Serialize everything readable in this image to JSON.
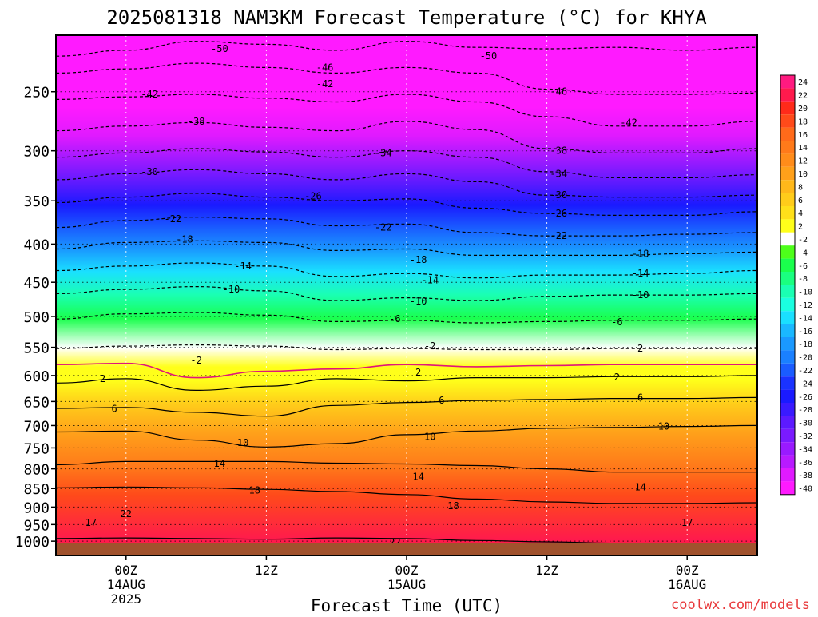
{
  "chart_data": {
    "type": "heatmap",
    "title": "2025081318 NAM3KM Forecast Temperature (°C) for KHYA",
    "xlabel": "Forecast Time (UTC)",
    "ylabel": "",
    "credit": "coolwx.com/models",
    "y_scale": "log-pressure",
    "y_ticks": [
      "250",
      "300",
      "350",
      "400",
      "450",
      "500",
      "550",
      "600",
      "650",
      "700",
      "750",
      "800",
      "850",
      "900",
      "950",
      "1000"
    ],
    "x_ticks": [
      {
        "hour": 6,
        "lines": [
          "00Z",
          "14AUG",
          "2025"
        ]
      },
      {
        "hour": 18,
        "lines": [
          "12Z"
        ]
      },
      {
        "hour": 30,
        "lines": [
          "00Z",
          "15AUG"
        ]
      },
      {
        "hour": 42,
        "lines": [
          "12Z"
        ]
      },
      {
        "hour": 54,
        "lines": [
          "00Z",
          "16AUG"
        ]
      }
    ],
    "x_range_hours": [
      0,
      60
    ],
    "colorbar": {
      "levels": [
        "24",
        "22",
        "20",
        "18",
        "16",
        "14",
        "12",
        "10",
        "8",
        "6",
        "4",
        "2",
        "-2",
        "-4",
        "-6",
        "-8",
        "-10",
        "-12",
        "-14",
        "-16",
        "-18",
        "-20",
        "-22",
        "-24",
        "-26",
        "-28",
        "-30",
        "-32",
        "-34",
        "-36",
        "-38",
        "-40"
      ],
      "colors": [
        "#ff1a80",
        "#ff1a4d",
        "#ff2a1a",
        "#ff4a1a",
        "#ff6a1a",
        "#ff7a1a",
        "#ff8c1a",
        "#ffa01a",
        "#ffb81a",
        "#ffcc1a",
        "#ffe01a",
        "#ffff1a",
        "#ffffff",
        "#4dff1a",
        "#1aff4d",
        "#1aff80",
        "#1affb3",
        "#1affe0",
        "#1ae0ff",
        "#1ab8ff",
        "#1a99ff",
        "#1a80ff",
        "#1a5cff",
        "#1a33ff",
        "#1a1aff",
        "#3a1aff",
        "#5c1aff",
        "#7a1aff",
        "#991aff",
        "#b81aff",
        "#e01aff",
        "#ff1aff"
      ]
    },
    "isotherms": [
      {
        "value": -50,
        "style": "dashed",
        "p": [
          224,
          220,
          214,
          216,
          220,
          214,
          218,
          219,
          218,
          220,
          218
        ]
      },
      {
        "value": -46,
        "style": "dashed",
        "p": [
          236,
          233,
          229,
          232,
          236,
          232,
          236,
          248,
          252,
          252,
          251
        ]
      },
      {
        "value": -42,
        "style": "dashed",
        "p": [
          256,
          254,
          252,
          255,
          258,
          252,
          258,
          270,
          278,
          278,
          274
        ]
      },
      {
        "value": -38,
        "style": "dashed",
        "p": [
          282,
          278,
          275,
          279,
          282,
          274,
          281,
          298,
          302,
          302,
          298
        ]
      },
      {
        "value": -34,
        "style": "dashed",
        "p": [
          306,
          302,
          298,
          301,
          306,
          300,
          306,
          320,
          326,
          326,
          323
        ]
      },
      {
        "value": -30,
        "style": "dashed",
        "p": [
          328,
          322,
          318,
          322,
          328,
          322,
          330,
          344,
          346,
          346,
          344
        ]
      },
      {
        "value": -26,
        "style": "dashed",
        "p": [
          352,
          346,
          342,
          346,
          350,
          348,
          358,
          364,
          366,
          366,
          362
        ]
      },
      {
        "value": -22,
        "style": "dashed",
        "p": [
          380,
          372,
          368,
          370,
          378,
          376,
          386,
          390,
          390,
          388,
          386
        ]
      },
      {
        "value": -18,
        "style": "dashed",
        "p": [
          406,
          398,
          396,
          398,
          408,
          406,
          414,
          414,
          414,
          412,
          410
        ]
      },
      {
        "value": -14,
        "style": "dashed",
        "p": [
          434,
          428,
          424,
          428,
          442,
          438,
          444,
          440,
          440,
          438,
          434
        ]
      },
      {
        "value": -10,
        "style": "dashed",
        "p": [
          466,
          460,
          456,
          462,
          476,
          472,
          476,
          470,
          468,
          468,
          466
        ]
      },
      {
        "value": -6,
        "style": "dashed",
        "p": [
          504,
          496,
          494,
          498,
          508,
          506,
          510,
          508,
          506,
          506,
          504
        ]
      },
      {
        "value": -2,
        "style": "dashed",
        "p": [
          552,
          548,
          546,
          548,
          554,
          552,
          554,
          554,
          552,
          552,
          552
        ]
      },
      {
        "value": 0,
        "style": "magenta",
        "p": [
          580,
          578,
          604,
          592,
          588,
          580,
          584,
          582,
          580,
          580,
          580
        ]
      },
      {
        "value": 2,
        "style": "solid",
        "p": [
          614,
          606,
          628,
          620,
          606,
          610,
          604,
          604,
          602,
          602,
          600
        ]
      },
      {
        "value": 6,
        "style": "solid",
        "p": [
          664,
          662,
          672,
          680,
          658,
          652,
          648,
          646,
          644,
          644,
          642
        ]
      },
      {
        "value": 10,
        "style": "solid",
        "p": [
          714,
          712,
          732,
          748,
          740,
          720,
          712,
          706,
          704,
          702,
          700
        ]
      },
      {
        "value": 14,
        "style": "solid",
        "p": [
          790,
          782,
          782,
          782,
          786,
          788,
          792,
          800,
          808,
          808,
          808
        ]
      },
      {
        "value": 18,
        "style": "solid",
        "p": [
          848,
          846,
          848,
          852,
          858,
          866,
          878,
          886,
          890,
          890,
          888
        ]
      },
      {
        "value": 22,
        "style": "solid",
        "p": [
          992,
          990,
          992,
          994,
          990,
          992,
          998,
          1002,
          1006,
          1008,
          1006
        ]
      }
    ],
    "contour_labels": [
      {
        "text": "-50",
        "hour": 14,
        "p": 219
      },
      {
        "text": "-50",
        "hour": 37,
        "p": 224
      },
      {
        "text": "-46",
        "hour": 23,
        "p": 232
      },
      {
        "text": "-46",
        "hour": 43,
        "p": 250
      },
      {
        "text": "-42",
        "hour": 8,
        "p": 252
      },
      {
        "text": "-42",
        "hour": 23,
        "p": 244
      },
      {
        "text": "-42",
        "hour": 49,
        "p": 275
      },
      {
        "text": "-38",
        "hour": 12,
        "p": 274
      },
      {
        "text": "-38",
        "hour": 43,
        "p": 300
      },
      {
        "text": "-34",
        "hour": 28,
        "p": 302
      },
      {
        "text": "-34",
        "hour": 43,
        "p": 322
      },
      {
        "text": "-30",
        "hour": 8,
        "p": 320
      },
      {
        "text": "-30",
        "hour": 43,
        "p": 344
      },
      {
        "text": "-26",
        "hour": 22,
        "p": 345
      },
      {
        "text": "-26",
        "hour": 43,
        "p": 364
      },
      {
        "text": "-22",
        "hour": 10,
        "p": 370
      },
      {
        "text": "-22",
        "hour": 28,
        "p": 380
      },
      {
        "text": "-22",
        "hour": 43,
        "p": 390
      },
      {
        "text": "-18",
        "hour": 11,
        "p": 394
      },
      {
        "text": "-18",
        "hour": 31,
        "p": 420
      },
      {
        "text": "-18",
        "hour": 50,
        "p": 412
      },
      {
        "text": "-14",
        "hour": 16,
        "p": 428
      },
      {
        "text": "-14",
        "hour": 32,
        "p": 447
      },
      {
        "text": "-14",
        "hour": 50,
        "p": 438
      },
      {
        "text": "-10",
        "hour": 15,
        "p": 460
      },
      {
        "text": "-10",
        "hour": 31,
        "p": 477
      },
      {
        "text": "-10",
        "hour": 50,
        "p": 468
      },
      {
        "text": "-6",
        "hour": 29,
        "p": 504
      },
      {
        "text": "-6",
        "hour": 48,
        "p": 509
      },
      {
        "text": "-2",
        "hour": 12,
        "p": 573
      },
      {
        "text": "-2",
        "hour": 32,
        "p": 548
      },
      {
        "text": "2",
        "hour": 50,
        "p": 552
      },
      {
        "text": "2",
        "hour": 4,
        "p": 606
      },
      {
        "text": "2",
        "hour": 31,
        "p": 594
      },
      {
        "text": "2",
        "hour": 48,
        "p": 603
      },
      {
        "text": "6",
        "hour": 5,
        "p": 665
      },
      {
        "text": "6",
        "hour": 33,
        "p": 648
      },
      {
        "text": "6",
        "hour": 50,
        "p": 642
      },
      {
        "text": "10",
        "hour": 16,
        "p": 738
      },
      {
        "text": "10",
        "hour": 32,
        "p": 725
      },
      {
        "text": "10",
        "hour": 52,
        "p": 702
      },
      {
        "text": "14",
        "hour": 14,
        "p": 787
      },
      {
        "text": "14",
        "hour": 31,
        "p": 820
      },
      {
        "text": "14",
        "hour": 50,
        "p": 846
      },
      {
        "text": "18",
        "hour": 17,
        "p": 855
      },
      {
        "text": "18",
        "hour": 34,
        "p": 897
      },
      {
        "text": "22",
        "hour": 6,
        "p": 919
      },
      {
        "text": "22",
        "hour": 29,
        "p": 1003
      },
      {
        "text": "17",
        "hour": 3,
        "p": 944
      },
      {
        "text": "17",
        "hour": 54,
        "p": 944
      }
    ],
    "grid": true
  }
}
